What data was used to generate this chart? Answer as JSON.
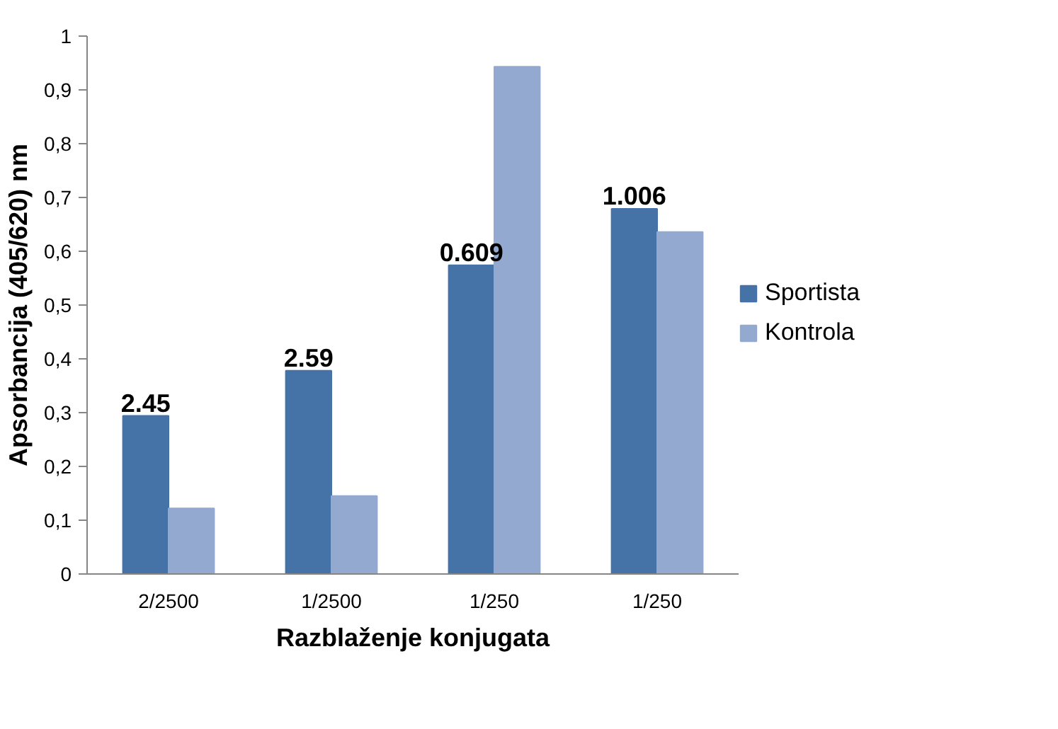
{
  "chart_data": {
    "type": "bar",
    "xlabel": "Razblaženje konjugata",
    "ylabel": "Apsorbancija (405/620) nm",
    "categories": [
      "2/2500",
      "1/2500",
      "1/250",
      "1/250"
    ],
    "series": [
      {
        "name": "Sportista",
        "color": "#4572a7",
        "values": [
          0.294,
          0.378,
          0.574,
          0.679
        ]
      },
      {
        "name": "Kontrola",
        "color": "#93a9cf",
        "values": [
          0.122,
          0.145,
          0.943,
          0.636
        ]
      }
    ],
    "ylim": [
      0,
      1
    ],
    "yticks": [
      0,
      {
        "value": 0.1,
        "label": "0,1"
      },
      {
        "value": 0.2,
        "label": "0,2"
      },
      {
        "value": 0.3,
        "label": "0,3"
      },
      {
        "value": 0.4,
        "label": "0,4"
      },
      {
        "value": 0.5,
        "label": "0,5"
      },
      {
        "value": 0.6,
        "label": "0,6"
      },
      {
        "value": 0.7,
        "label": "0,7"
      },
      {
        "value": 0.8,
        "label": "0,8"
      },
      {
        "value": 0.9,
        "label": "0,9"
      },
      1
    ],
    "annotations": [
      {
        "text": "2.45",
        "x": "2/2500",
        "y": 0.294
      },
      {
        "text": "2.59",
        "x": "1/2500",
        "y": 0.378
      },
      {
        "text": "0.609",
        "x": "1/250",
        "y": 0.574
      },
      "1.006"
    ],
    "grid": false,
    "legend": "right"
  }
}
